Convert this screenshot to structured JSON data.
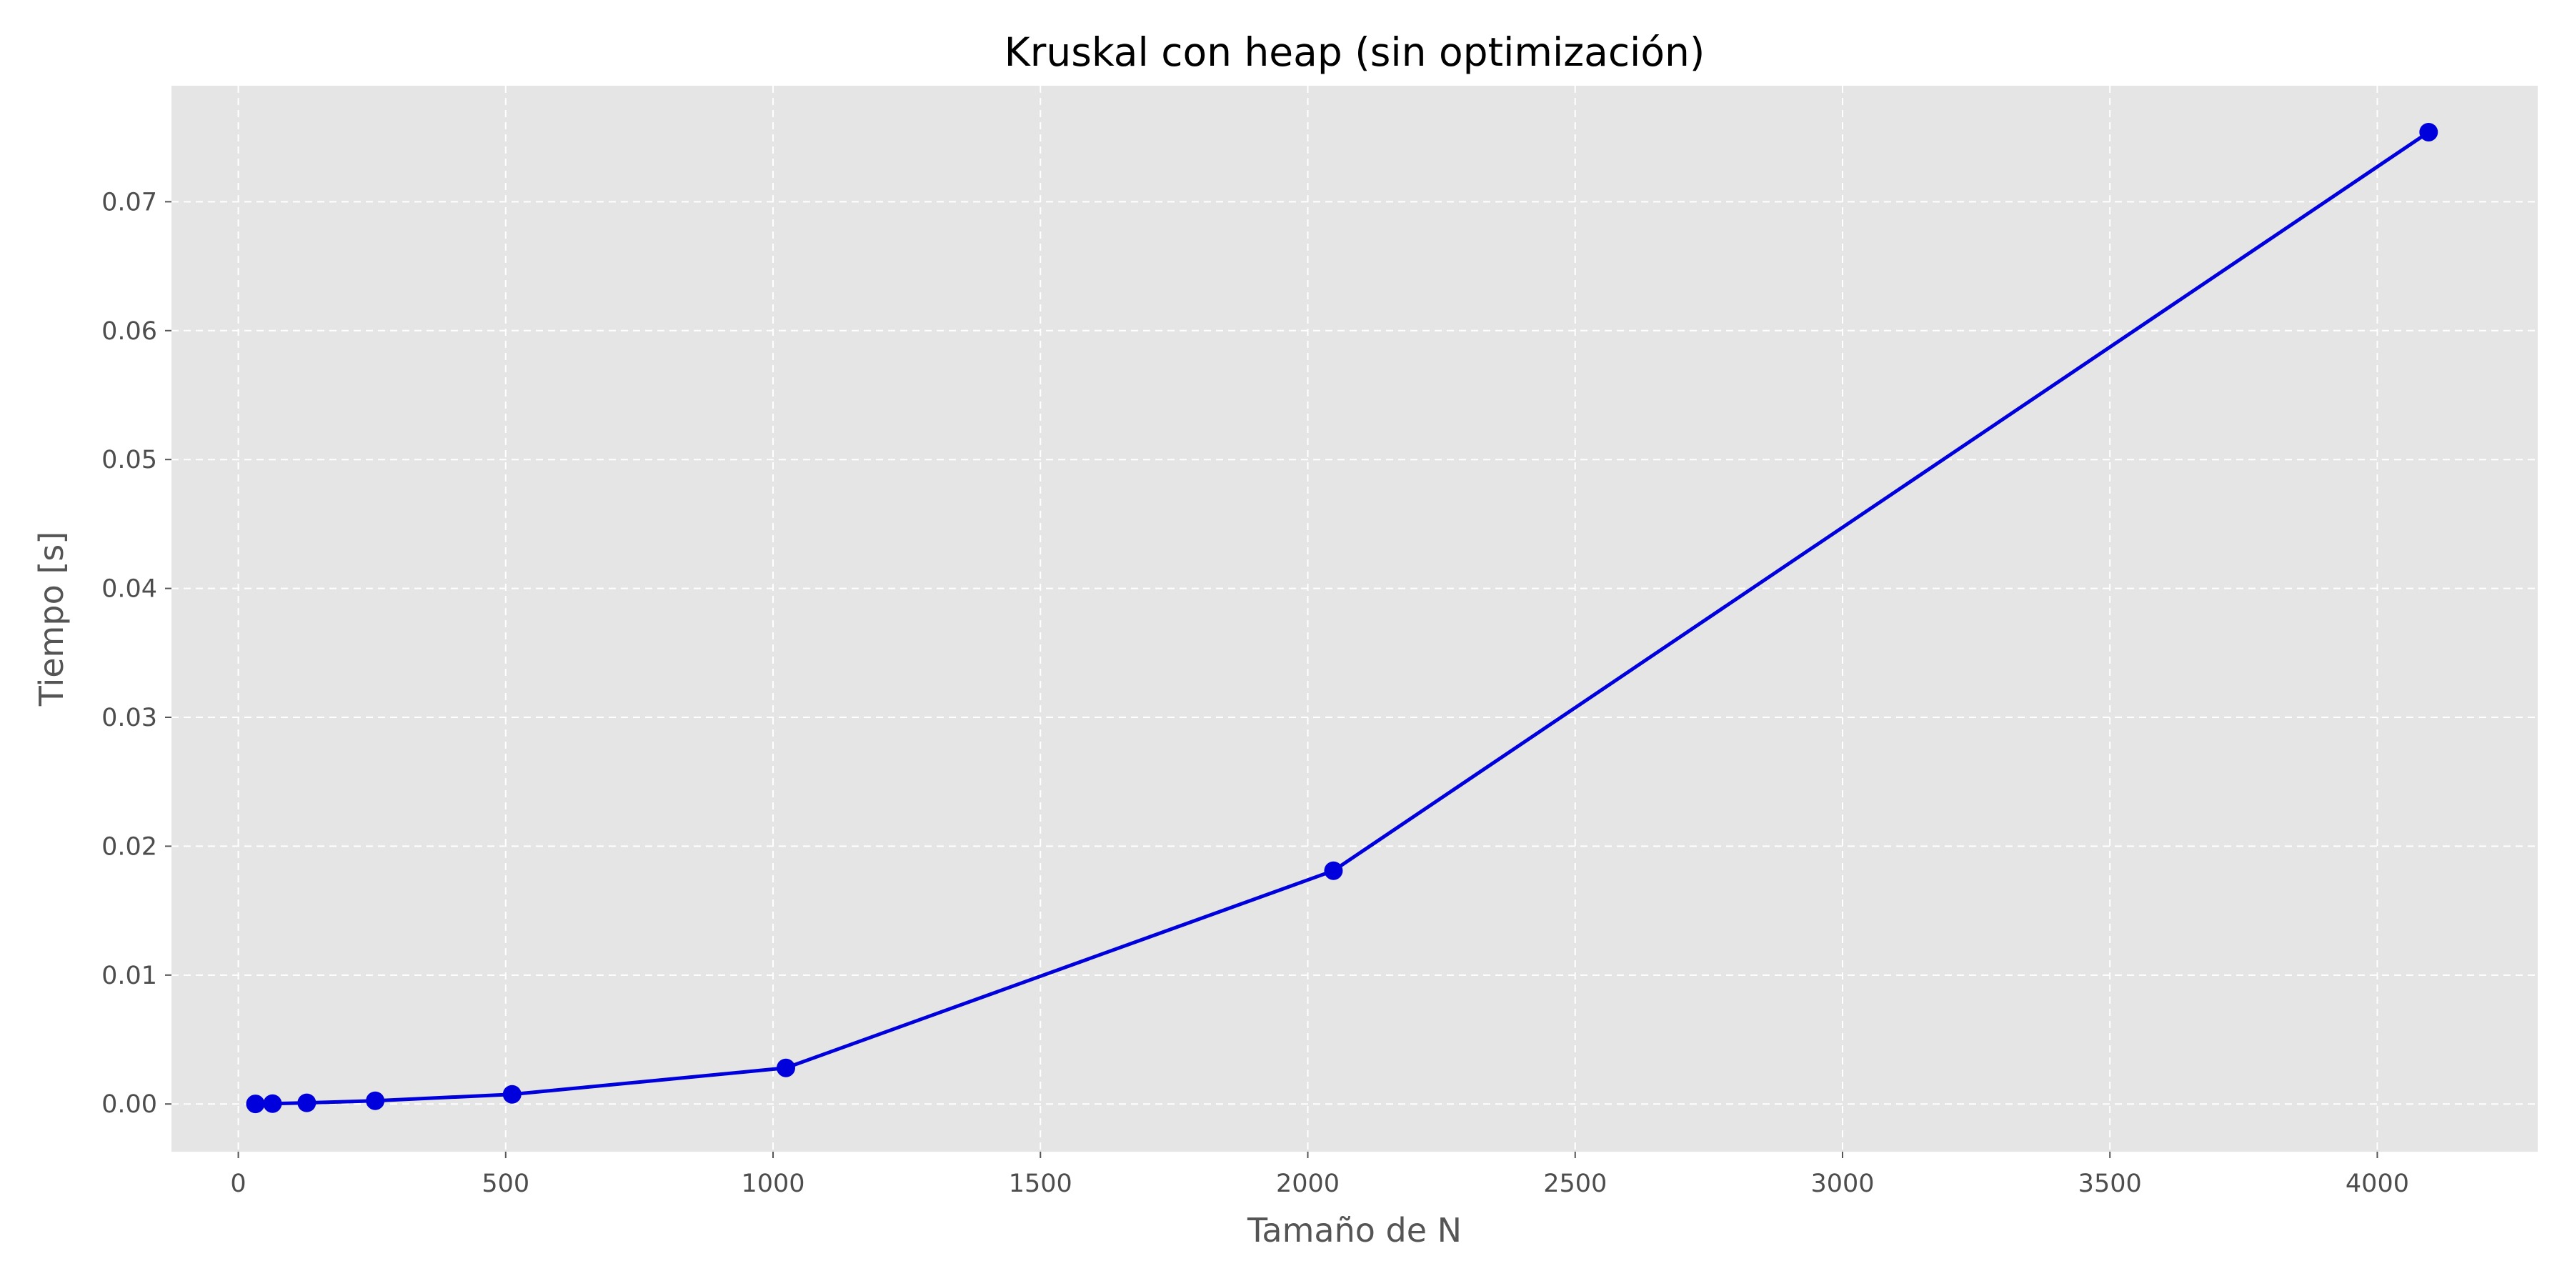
{
  "chart_data": {
    "type": "line",
    "title": "Kruskal con heap (sin optimización)",
    "xlabel": "Tamaño de N",
    "ylabel": "Tiempo [s]",
    "xlim": [
      -125,
      4300
    ],
    "ylim": [
      -0.0037,
      0.079
    ],
    "x_ticks": [
      0,
      500,
      1000,
      1500,
      2000,
      2500,
      3000,
      3500,
      4000
    ],
    "x_tick_labels": [
      "0",
      "500",
      "1000",
      "1500",
      "2000",
      "2500",
      "3000",
      "3500",
      "4000"
    ],
    "y_ticks": [
      0,
      0.01,
      0.02,
      0.03,
      0.04,
      0.05,
      0.06,
      0.07
    ],
    "y_tick_labels": [
      "0.00",
      "0.01",
      "0.02",
      "0.03",
      "0.04",
      "0.05",
      "0.06",
      "0.07"
    ],
    "grid": true,
    "series": [
      {
        "color": "#0000dd",
        "marker": "circle",
        "points": [
          {
            "x": 32,
            "y": 1e-05
          },
          {
            "x": 64,
            "y": 3e-05
          },
          {
            "x": 128,
            "y": 9e-05
          },
          {
            "x": 256,
            "y": 0.00025
          },
          {
            "x": 512,
            "y": 0.00075
          },
          {
            "x": 1024,
            "y": 0.0028
          },
          {
            "x": 2048,
            "y": 0.0181
          },
          {
            "x": 4096,
            "y": 0.0754
          }
        ]
      }
    ]
  },
  "colors": {
    "plot_background": "#e5e5e5",
    "grid": "#ffffff",
    "series": "#0000dd"
  }
}
